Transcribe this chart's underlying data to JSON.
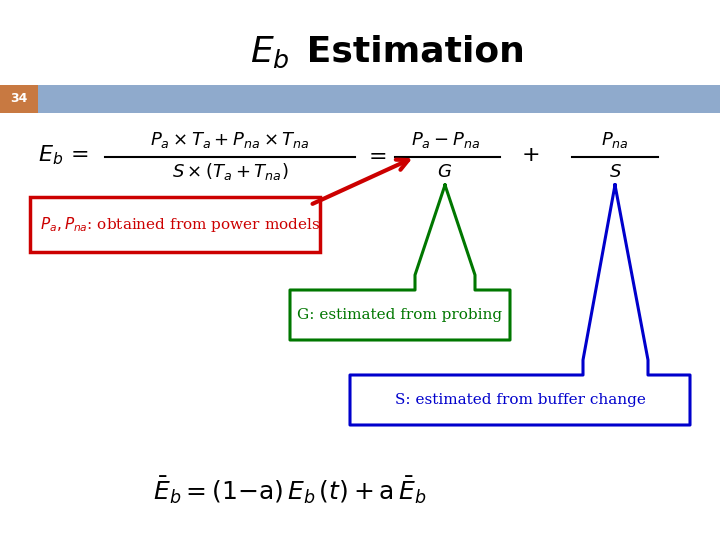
{
  "title_eb": "$E_b$",
  "title_rest": " Estimation",
  "slide_number": "34",
  "bg_color": "#ffffff",
  "header_bar_color": "#8faacc",
  "slide_num_bg": "#c87941",
  "title_color": "#000000",
  "annotation1_text": "$P_a, P_{na}$: obtained from power models",
  "annotation1_color": "#cc0000",
  "annotation2_text": "G: estimated from probing",
  "annotation2_color": "#007700",
  "annotation3_text": "S: estimated from buffer change",
  "annotation3_color": "#0000cc",
  "bottom_formula_color": "#000000",
  "formula_color": "#000000"
}
